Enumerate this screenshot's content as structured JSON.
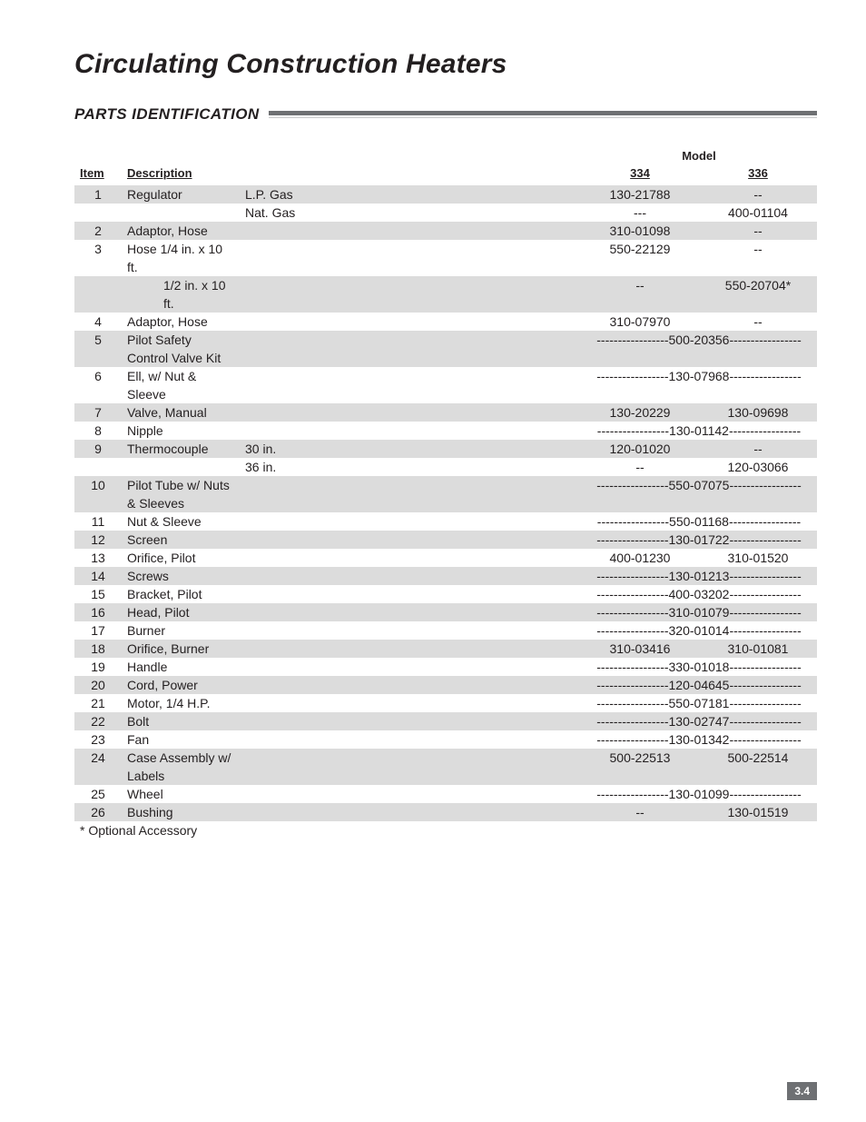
{
  "title": "Circulating Construction Heaters",
  "section": "PARTS IDENTIFICATION",
  "colors": {
    "text": "#231f20",
    "shade": "#dcdcdc",
    "rule_dark": "#6e7073",
    "rule_light": "#c9cacb",
    "page_num_bg": "#6e7073",
    "page_num_fg": "#ffffff",
    "background": "#ffffff"
  },
  "table": {
    "model_header": "Model",
    "headers": {
      "item": "Item",
      "description": "Description",
      "m334": "334",
      "m336": "336"
    },
    "rows": [
      {
        "shade": true,
        "item": "1",
        "desc": "Regulator",
        "sub": "L.P. Gas",
        "m334": "130-21788",
        "m336": "--"
      },
      {
        "shade": false,
        "item": "",
        "desc": "",
        "sub": "Nat. Gas",
        "m334": "---",
        "m336": "400-01104"
      },
      {
        "shade": true,
        "item": "2",
        "desc": "Adaptor, Hose",
        "sub": "",
        "m334": "310-01098",
        "m336": "--"
      },
      {
        "shade": false,
        "item": "3",
        "desc": "Hose  1/4 in. x 10 ft.",
        "sub": "",
        "m334": "550-22129",
        "m336": "--"
      },
      {
        "shade": true,
        "item": "",
        "desc": "1/2 in. x 10 ft.",
        "sub": "",
        "desc_indent": true,
        "m334": "--",
        "m336": "550-20704*"
      },
      {
        "shade": false,
        "item": "4",
        "desc": "Adaptor, Hose",
        "sub": "",
        "m334": "310-07970",
        "m336": "--"
      },
      {
        "shade": true,
        "item": "5",
        "desc": "Pilot Safety Control Valve Kit",
        "sub": "",
        "span": "-----------------500-20356-----------------"
      },
      {
        "shade": false,
        "item": "6",
        "desc": "Ell, w/ Nut & Sleeve",
        "sub": "",
        "span": "-----------------130-07968-----------------"
      },
      {
        "shade": true,
        "item": "7",
        "desc": "Valve, Manual",
        "sub": "",
        "m334": "130-20229",
        "m336": "130-09698"
      },
      {
        "shade": false,
        "item": "8",
        "desc": "Nipple",
        "sub": "",
        "span": "-----------------130-01142-----------------"
      },
      {
        "shade": true,
        "item": "9",
        "desc": "Thermocouple",
        "sub": "30 in.",
        "m334": "120-01020",
        "m336": "--"
      },
      {
        "shade": false,
        "item": "",
        "desc": "",
        "sub": "36 in.",
        "m334": "--",
        "m336": "120-03066"
      },
      {
        "shade": true,
        "item": "10",
        "desc": "Pilot Tube w/ Nuts & Sleeves",
        "sub": "",
        "span": "-----------------550-07075-----------------"
      },
      {
        "shade": false,
        "item": "11",
        "desc": "Nut & Sleeve",
        "sub": "",
        "span": "-----------------550-01168-----------------"
      },
      {
        "shade": true,
        "item": "12",
        "desc": "Screen",
        "sub": "",
        "span": "-----------------130-01722-----------------"
      },
      {
        "shade": false,
        "item": "13",
        "desc": "Orifice, Pilot",
        "sub": "",
        "m334": "400-01230",
        "m336": "310-01520"
      },
      {
        "shade": true,
        "item": "14",
        "desc": "Screws",
        "sub": "",
        "span": "-----------------130-01213-----------------"
      },
      {
        "shade": false,
        "item": "15",
        "desc": "Bracket, Pilot",
        "sub": "",
        "span": "-----------------400-03202-----------------"
      },
      {
        "shade": true,
        "item": "16",
        "desc": "Head, Pilot",
        "sub": "",
        "span": "-----------------310-01079-----------------"
      },
      {
        "shade": false,
        "item": "17",
        "desc": "Burner",
        "sub": "",
        "span": "-----------------320-01014-----------------"
      },
      {
        "shade": true,
        "item": "18",
        "desc": "Orifice, Burner",
        "sub": "",
        "m334": "310-03416",
        "m336": "310-01081"
      },
      {
        "shade": false,
        "item": "19",
        "desc": "Handle",
        "sub": "",
        "span": "-----------------330-01018-----------------"
      },
      {
        "shade": true,
        "item": "20",
        "desc": "Cord, Power",
        "sub": "",
        "span": "-----------------120-04645-----------------"
      },
      {
        "shade": false,
        "item": "21",
        "desc": "Motor, 1/4 H.P.",
        "sub": "",
        "span": "-----------------550-07181-----------------"
      },
      {
        "shade": true,
        "item": "22",
        "desc": "Bolt",
        "sub": "",
        "span": "-----------------130-02747-----------------"
      },
      {
        "shade": false,
        "item": "23",
        "desc": "Fan",
        "sub": "",
        "span": "-----------------130-01342-----------------"
      },
      {
        "shade": true,
        "item": "24",
        "desc": "Case Assembly w/ Labels",
        "sub": "",
        "m334": "500-22513",
        "m336": "500-22514"
      },
      {
        "shade": false,
        "item": "25",
        "desc": "Wheel",
        "sub": "",
        "span": "-----------------130-01099-----------------"
      },
      {
        "shade": true,
        "item": "26",
        "desc": "Bushing",
        "sub": "",
        "m334": "--",
        "m336": "130-01519"
      }
    ]
  },
  "footnote": "* Optional Accessory",
  "page_number": "3.4"
}
